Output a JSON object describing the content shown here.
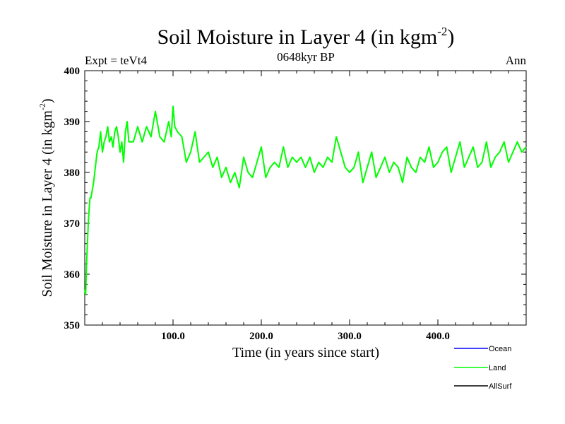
{
  "chart_data": {
    "type": "line",
    "title": "Soil Moisture in Layer 4 (in kgm",
    "title_superscript": "-2",
    "title_suffix": ")",
    "subtitle": "0648kyr BP",
    "left_note": "Expt = teVt4",
    "right_note": "Ann",
    "xlabel": "Time (in years since start)",
    "ylabel": "Soil Moisture in Layer 4 (in kgm",
    "ylabel_superscript": "-2",
    "ylabel_suffix": ")",
    "xlim": [
      0,
      500
    ],
    "ylim": [
      350,
      400
    ],
    "x_ticks": [
      100,
      200,
      300,
      400
    ],
    "x_tick_labels": [
      "100.0",
      "200.0",
      "300.0",
      "400.0"
    ],
    "y_ticks": [
      350,
      360,
      370,
      380,
      390,
      400
    ],
    "y_tick_labels": [
      "350",
      "360",
      "370",
      "380",
      "390",
      "400"
    ],
    "grid": false,
    "legend_position": "bottom-right",
    "series": [
      {
        "name": "Ocean",
        "color": "#0000ff",
        "x": [],
        "y": []
      },
      {
        "name": "Land",
        "color": "#00ff00",
        "x": [
          0,
          1,
          2,
          3,
          4,
          5,
          6,
          7,
          8,
          9,
          10,
          12,
          14,
          16,
          18,
          20,
          22,
          24,
          26,
          28,
          30,
          32,
          34,
          36,
          38,
          40,
          42,
          44,
          46,
          48,
          50,
          55,
          60,
          65,
          70,
          75,
          80,
          85,
          90,
          95,
          98,
          100,
          102,
          105,
          110,
          115,
          120,
          125,
          130,
          135,
          140,
          145,
          150,
          155,
          160,
          165,
          170,
          175,
          180,
          185,
          190,
          195,
          200,
          205,
          210,
          215,
          220,
          225,
          230,
          235,
          240,
          245,
          250,
          255,
          260,
          265,
          270,
          275,
          280,
          285,
          290,
          295,
          300,
          305,
          310,
          315,
          320,
          325,
          330,
          335,
          340,
          345,
          350,
          355,
          360,
          365,
          370,
          375,
          380,
          385,
          390,
          395,
          400,
          405,
          410,
          415,
          420,
          425,
          430,
          435,
          440,
          445,
          450,
          455,
          460,
          465,
          470,
          475,
          480,
          485,
          490,
          495,
          500
        ],
        "y": [
          357,
          356,
          362,
          366,
          370,
          373,
          375,
          375,
          376,
          377,
          378,
          381,
          384,
          385,
          388,
          384,
          386,
          387,
          389,
          386,
          387,
          385,
          388,
          389,
          387,
          384,
          386,
          382,
          388,
          390,
          386,
          386,
          389,
          386,
          389,
          387,
          392,
          387,
          386,
          390,
          387,
          393,
          389,
          388,
          387,
          382,
          384,
          388,
          382,
          383,
          384,
          381,
          383,
          379,
          381,
          378,
          380,
          377,
          383,
          380,
          379,
          382,
          385,
          379,
          381,
          382,
          381,
          385,
          381,
          383,
          382,
          383,
          381,
          383,
          380,
          382,
          381,
          383,
          382,
          387,
          384,
          381,
          380,
          381,
          384,
          378,
          381,
          384,
          379,
          381,
          383,
          380,
          382,
          381,
          378,
          383,
          381,
          380,
          383,
          382,
          385,
          381,
          382,
          384,
          385,
          380,
          383,
          386,
          381,
          383,
          385,
          381,
          382,
          386,
          381,
          383,
          384,
          386,
          382,
          384,
          386,
          384,
          385
        ]
      },
      {
        "name": "AllSurf",
        "color": "#000000",
        "x": [],
        "y": []
      }
    ]
  }
}
